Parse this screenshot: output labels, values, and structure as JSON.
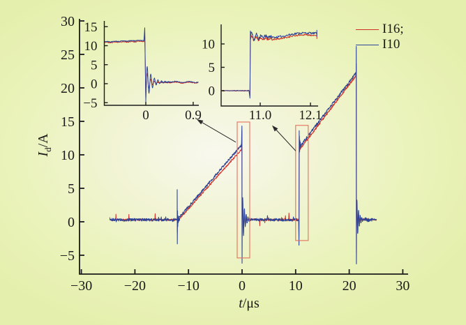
{
  "figure": {
    "background_center_color": "#f8f8ee",
    "background_edge_color": "#e5efad",
    "axis_color": "#1b1b1b",
    "zoom_box_color": "#e4705c",
    "arrow_color": "#2a2a2a"
  },
  "chart_data": {
    "type": "line",
    "title": "",
    "xlabel_var": "t",
    "xlabel_unit": "/μs",
    "ylabel_var": "I",
    "ylabel_sub": "d",
    "ylabel_unit": "/A",
    "xlim": [
      -30,
      30
    ],
    "ylim": [
      -8,
      31
    ],
    "grid": false,
    "legend_position": "top-right",
    "x_ticks": [
      -30,
      -20,
      -10,
      0,
      10,
      20,
      30
    ],
    "x_tick_labels": [
      "−30",
      "−20",
      "−10",
      "0",
      "10",
      "20",
      "30"
    ],
    "y_ticks": [
      30,
      25,
      20,
      15,
      10,
      5,
      0,
      -5
    ],
    "y_tick_labels": [
      "30",
      "25",
      "20",
      "15",
      "10",
      "5",
      "0",
      "−5"
    ],
    "series": [
      {
        "name": "I16;",
        "color": "#d02f26",
        "line_width": 1.0
      },
      {
        "name": "I10",
        "color": "#2e4497",
        "line_width": 1.1
      }
    ],
    "waveform": {
      "flat_level_A": 0.3,
      "I10_keypoints": [
        [
          -24.7,
          0.3
        ],
        [
          -12.1,
          0.3
        ],
        [
          -12.1,
          4.8
        ],
        [
          -12.08,
          -3.3
        ],
        [
          -11.9,
          0.5
        ],
        [
          -0.05,
          11.5
        ],
        [
          -0.02,
          14.3
        ],
        [
          0.0,
          -6.2
        ],
        [
          2.6,
          0.3
        ],
        [
          10.6,
          0.3
        ],
        [
          10.63,
          -3.5
        ],
        [
          10.66,
          13.6
        ],
        [
          11.0,
          11.45
        ],
        [
          21.25,
          22.2
        ],
        [
          21.32,
          26.2
        ],
        [
          21.34,
          -6.3
        ],
        [
          23.0,
          0.3
        ],
        [
          25.15,
          0.3
        ]
      ],
      "I16_ramp_offset_A": -0.4,
      "ringing_period_us": 0.33,
      "ringing_decay_us": 0.42,
      "events_us": {
        "pre_pulse_spike": -12.1,
        "turn_off": 0.0,
        "turn_on": 10.66,
        "final_turn_off": 21.32
      }
    },
    "insets": [
      {
        "name": "turn-off-detail",
        "xlim": [
          -0.78,
          1.0
        ],
        "ylim": [
          -5.5,
          16.6
        ],
        "x_ticks": [
          0,
          0.9
        ],
        "x_tick_labels": [
          "0",
          "0.9"
        ],
        "y_ticks": [
          15,
          10,
          5,
          0,
          -5
        ],
        "y_tick_labels": [
          "15",
          "10",
          "5",
          "0",
          "−5"
        ],
        "pre_level_A": 11.0,
        "pre_level_end_A": 11.5,
        "overshoot_A": 14.7,
        "undershoot_A": -4.7,
        "post_level_A": 0.45
      },
      {
        "name": "turn-on-detail",
        "xlim": [
          10.15,
          12.27
        ],
        "ylim": [
          -3.3,
          14.2
        ],
        "x_ticks": [
          11.0,
          12.1
        ],
        "x_tick_labels": [
          "11.0",
          "12.1"
        ],
        "y_ticks": [
          10,
          5,
          0
        ],
        "y_tick_labels": [
          "10",
          "5",
          "0"
        ],
        "pre_level_A": 0.0,
        "dip_A": -1.6,
        "jump_peak_A": 12.8,
        "settle_level_A": 11.55,
        "end_level_A": 12.45
      }
    ],
    "zoom_boxes": [
      {
        "t_range": [
          -0.91,
          1.43
        ],
        "I_range": [
          -5.4,
          14.9
        ]
      },
      {
        "t_range": [
          10.0,
          12.35
        ],
        "I_range": [
          -2.8,
          14.4
        ]
      }
    ],
    "arrows": [
      {
        "from": {
          "t": -1.17,
          "I": 11.9
        },
        "to": {
          "t": -8.46,
          "I": 15.3
        }
      },
      {
        "from": {
          "t": 10.0,
          "I": 10.6
        },
        "to": {
          "t": 5.6,
          "I": 14.4
        }
      }
    ]
  }
}
